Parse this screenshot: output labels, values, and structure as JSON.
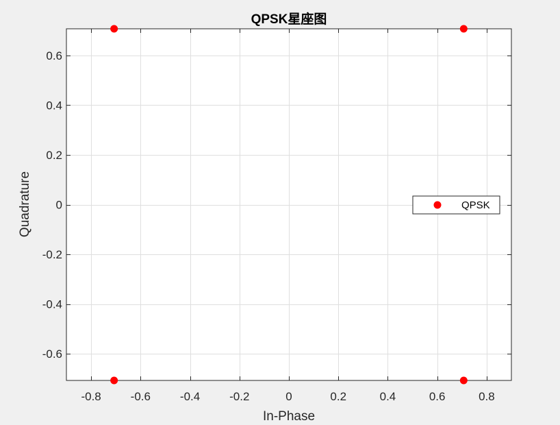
{
  "chart_data": {
    "type": "scatter",
    "title": "QPSK星座图",
    "xlabel": "In-Phase",
    "ylabel": "Quadrature",
    "xlim": [
      -0.9,
      0.9
    ],
    "ylim": [
      -0.7071,
      0.7071
    ],
    "xticks": [
      -0.8,
      -0.6,
      -0.4,
      -0.2,
      0,
      0.2,
      0.4,
      0.6,
      0.8
    ],
    "xtick_labels": [
      "-0.8",
      "-0.6",
      "-0.4",
      "-0.2",
      "0",
      "0.2",
      "0.4",
      "0.6",
      "0.8"
    ],
    "yticks": [
      -0.6,
      -0.4,
      -0.2,
      0,
      0.2,
      0.4,
      0.6
    ],
    "ytick_labels": [
      "-0.6",
      "-0.4",
      "-0.2",
      "0",
      "0.2",
      "0.4",
      "0.6"
    ],
    "grid": true,
    "legend_position": "east",
    "series": [
      {
        "name": "QPSK",
        "color": "#ff0000",
        "marker": "circle",
        "points": [
          {
            "x": 0.7071,
            "y": 0.7071
          },
          {
            "x": -0.7071,
            "y": 0.7071
          },
          {
            "x": -0.7071,
            "y": -0.7071
          },
          {
            "x": 0.7071,
            "y": -0.7071
          }
        ]
      }
    ]
  },
  "colors": {
    "figure_background": "#f0f0f0",
    "axes_background": "#ffffff",
    "grid": "#dfdfdf",
    "axis": "#262626"
  }
}
